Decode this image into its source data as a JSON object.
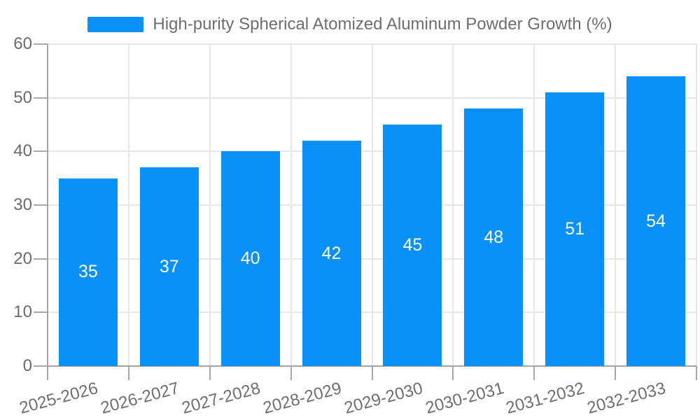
{
  "legend": {
    "label": "High-purity Spherical Atomized Aluminum Powder Growth (%)",
    "swatch_color": "#0a90f9"
  },
  "chart_data": {
    "type": "bar",
    "title": "High-purity Spherical Atomized Aluminum Powder Growth (%)",
    "categories": [
      "2025-2026",
      "2026-2027",
      "2027-2028",
      "2028-2029",
      "2029-2030",
      "2030-2031",
      "2031-2032",
      "2032-2033"
    ],
    "series": [
      {
        "name": "High-purity Spherical Atomized Aluminum Powder Growth (%)",
        "values": [
          35,
          37,
          40,
          42,
          45,
          48,
          51,
          54
        ]
      }
    ],
    "value_labels": [
      "35",
      "37",
      "40",
      "42",
      "45",
      "48",
      "51",
      "54"
    ],
    "xlabel": "",
    "ylabel": "",
    "ylim": [
      0,
      60
    ],
    "yticks": [
      0,
      10,
      20,
      30,
      40,
      50,
      60
    ],
    "grid": true,
    "legend_position": "top",
    "colors": {
      "bar": "#0a90f9",
      "value_label": "#ffffff",
      "grid_line": "#e6e6e6",
      "axis_line": "#a3a3a3",
      "tick_label": "#6b6b6b",
      "legend_text": "#6e6e6e",
      "background": "#ffffff"
    }
  }
}
